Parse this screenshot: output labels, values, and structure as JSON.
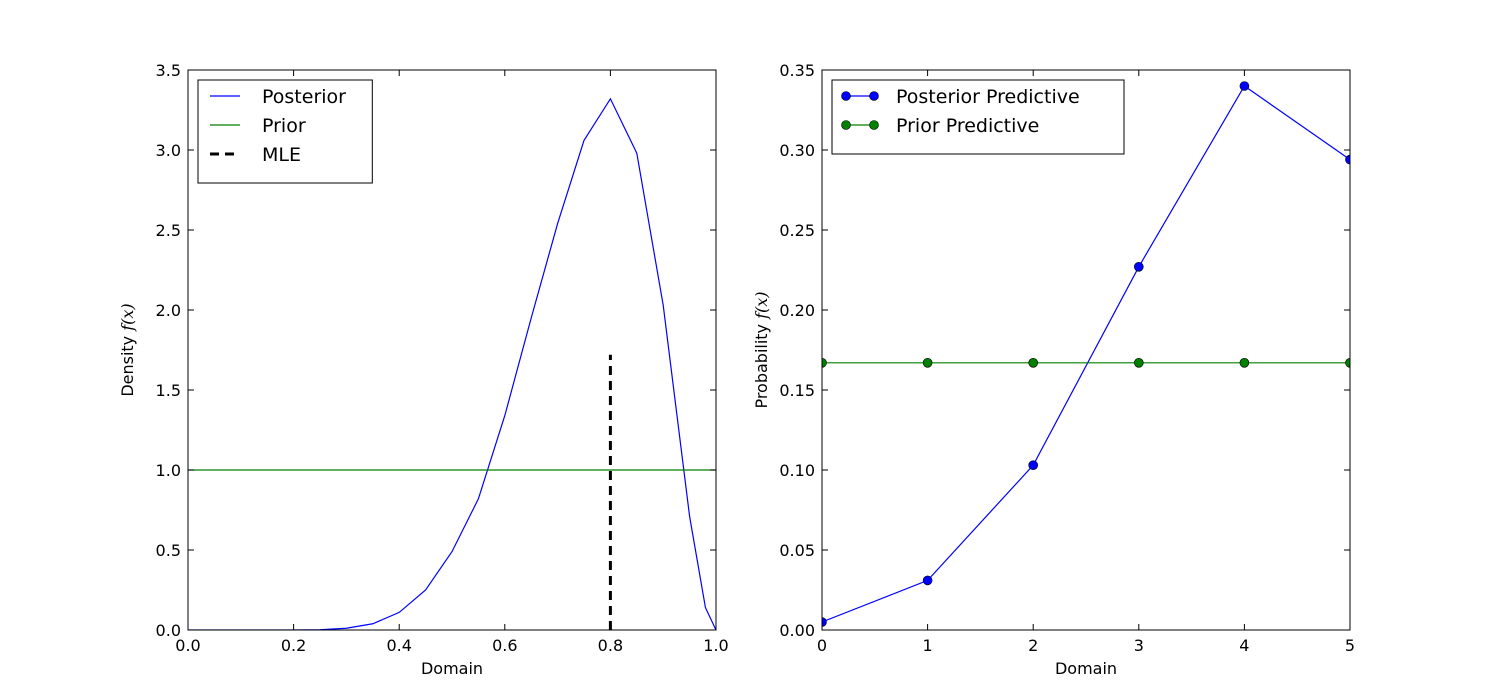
{
  "chart_data": [
    {
      "type": "line",
      "xlabel": "Domain",
      "ylabel_prefix": "Density",
      "ylabel_math": "f(x)",
      "xlim": [
        0.0,
        1.0
      ],
      "ylim": [
        0.0,
        3.5
      ],
      "xticks": [
        "0.0",
        "0.2",
        "0.4",
        "0.6",
        "0.8",
        "1.0"
      ],
      "yticks": [
        "0.0",
        "0.5",
        "1.0",
        "1.5",
        "2.0",
        "2.5",
        "3.0",
        "3.5"
      ],
      "grid": false,
      "legend_position": "top-left",
      "series": [
        {
          "name": "Posterior",
          "color": "#0000ff",
          "style": "solid",
          "x": [
            0.0,
            0.05,
            0.1,
            0.15,
            0.2,
            0.25,
            0.3,
            0.35,
            0.4,
            0.45,
            0.5,
            0.55,
            0.6,
            0.65,
            0.7,
            0.75,
            0.8,
            0.85,
            0.9,
            0.95,
            0.98,
            1.0
          ],
          "y": [
            0.0,
            0.0,
            0.0,
            0.0,
            0.0,
            0.002,
            0.011,
            0.039,
            0.11,
            0.25,
            0.49,
            0.82,
            1.34,
            1.95,
            2.54,
            3.06,
            3.32,
            2.98,
            2.03,
            0.71,
            0.14,
            0.0
          ]
        },
        {
          "name": "Prior",
          "color": "#008000",
          "style": "solid",
          "x": [
            0.0,
            1.0
          ],
          "y": [
            1.0,
            1.0
          ]
        },
        {
          "name": "MLE",
          "color": "#000000",
          "style": "dashed",
          "x": [
            0.8,
            0.8
          ],
          "y": [
            0.0,
            1.72
          ]
        }
      ]
    },
    {
      "type": "line",
      "xlabel": "Domain",
      "ylabel_prefix": "Probability",
      "ylabel_math": "f(x)",
      "xlim": [
        0,
        5
      ],
      "ylim": [
        0.0,
        0.35
      ],
      "xticks": [
        "0",
        "1",
        "2",
        "3",
        "4",
        "5"
      ],
      "yticks": [
        "0.00",
        "0.05",
        "0.10",
        "0.15",
        "0.20",
        "0.25",
        "0.30",
        "0.35"
      ],
      "grid": false,
      "legend_position": "top-left",
      "series": [
        {
          "name": "Posterior Predictive",
          "color": "#0000ff",
          "markerfill": "#0000ff",
          "x": [
            0,
            1,
            2,
            3,
            4,
            5
          ],
          "y": [
            0.005,
            0.031,
            0.103,
            0.227,
            0.34,
            0.294
          ]
        },
        {
          "name": "Prior Predictive",
          "color": "#008000",
          "markerfill": "#008000",
          "x": [
            0,
            1,
            2,
            3,
            4,
            5
          ],
          "y": [
            0.167,
            0.167,
            0.167,
            0.167,
            0.167,
            0.167
          ]
        }
      ]
    }
  ]
}
